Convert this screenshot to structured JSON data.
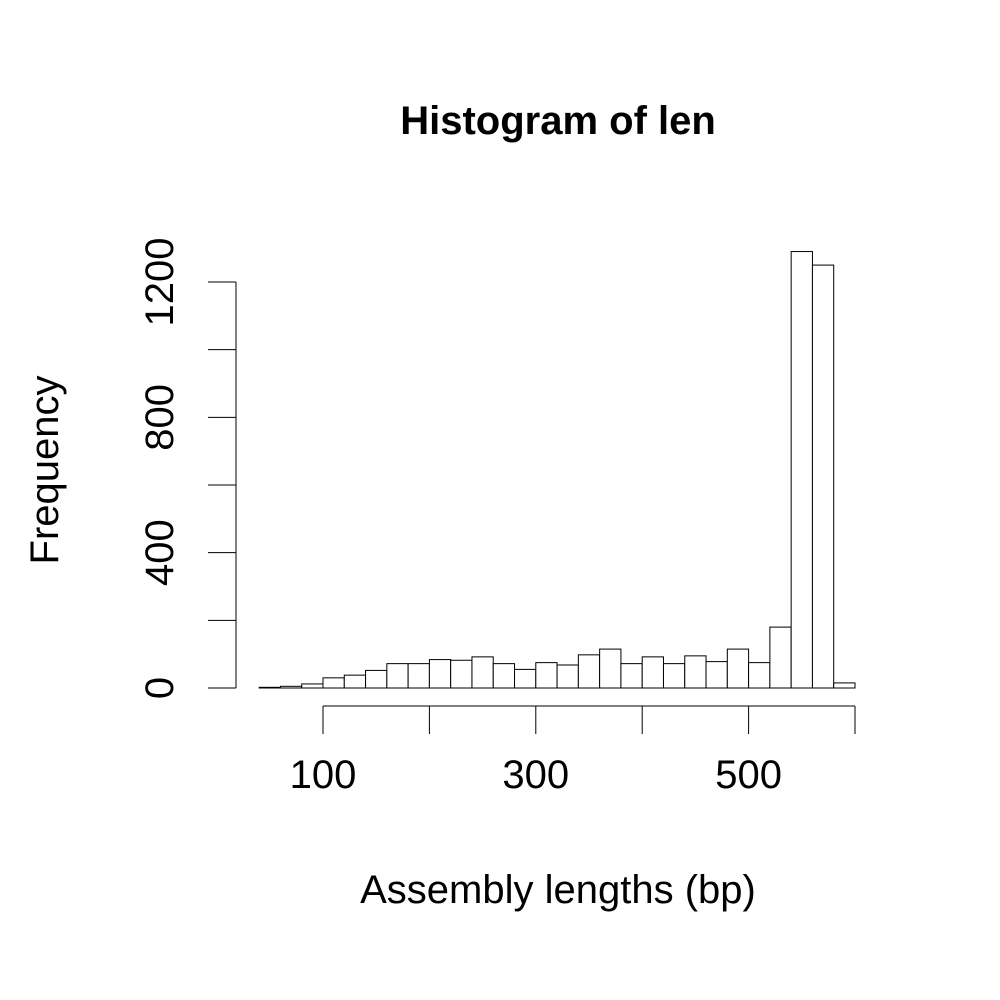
{
  "chart_data": {
    "type": "bar",
    "title": "Histogram of len",
    "xlabel": "Assembly lengths (bp)",
    "ylabel": "Frequency",
    "bin_width": 20,
    "x_start": 40,
    "values": [
      2,
      5,
      12,
      30,
      38,
      52,
      72,
      72,
      84,
      82,
      92,
      72,
      55,
      75,
      68,
      98,
      115,
      72,
      92,
      72,
      95,
      78,
      115,
      75,
      180,
      1290,
      1250,
      15
    ],
    "xlim": [
      40,
      600
    ],
    "ylim": [
      0,
      1200
    ],
    "x_ticks": [
      100,
      200,
      300,
      400,
      500,
      600
    ],
    "x_tick_labels": [
      "100",
      "",
      "300",
      "",
      "500",
      ""
    ],
    "y_ticks": [
      0,
      200,
      400,
      600,
      800,
      1000,
      1200
    ],
    "y_tick_labels": [
      "0",
      "",
      "400",
      "",
      "800",
      "",
      "1200"
    ],
    "grid": false,
    "legend": "none"
  }
}
